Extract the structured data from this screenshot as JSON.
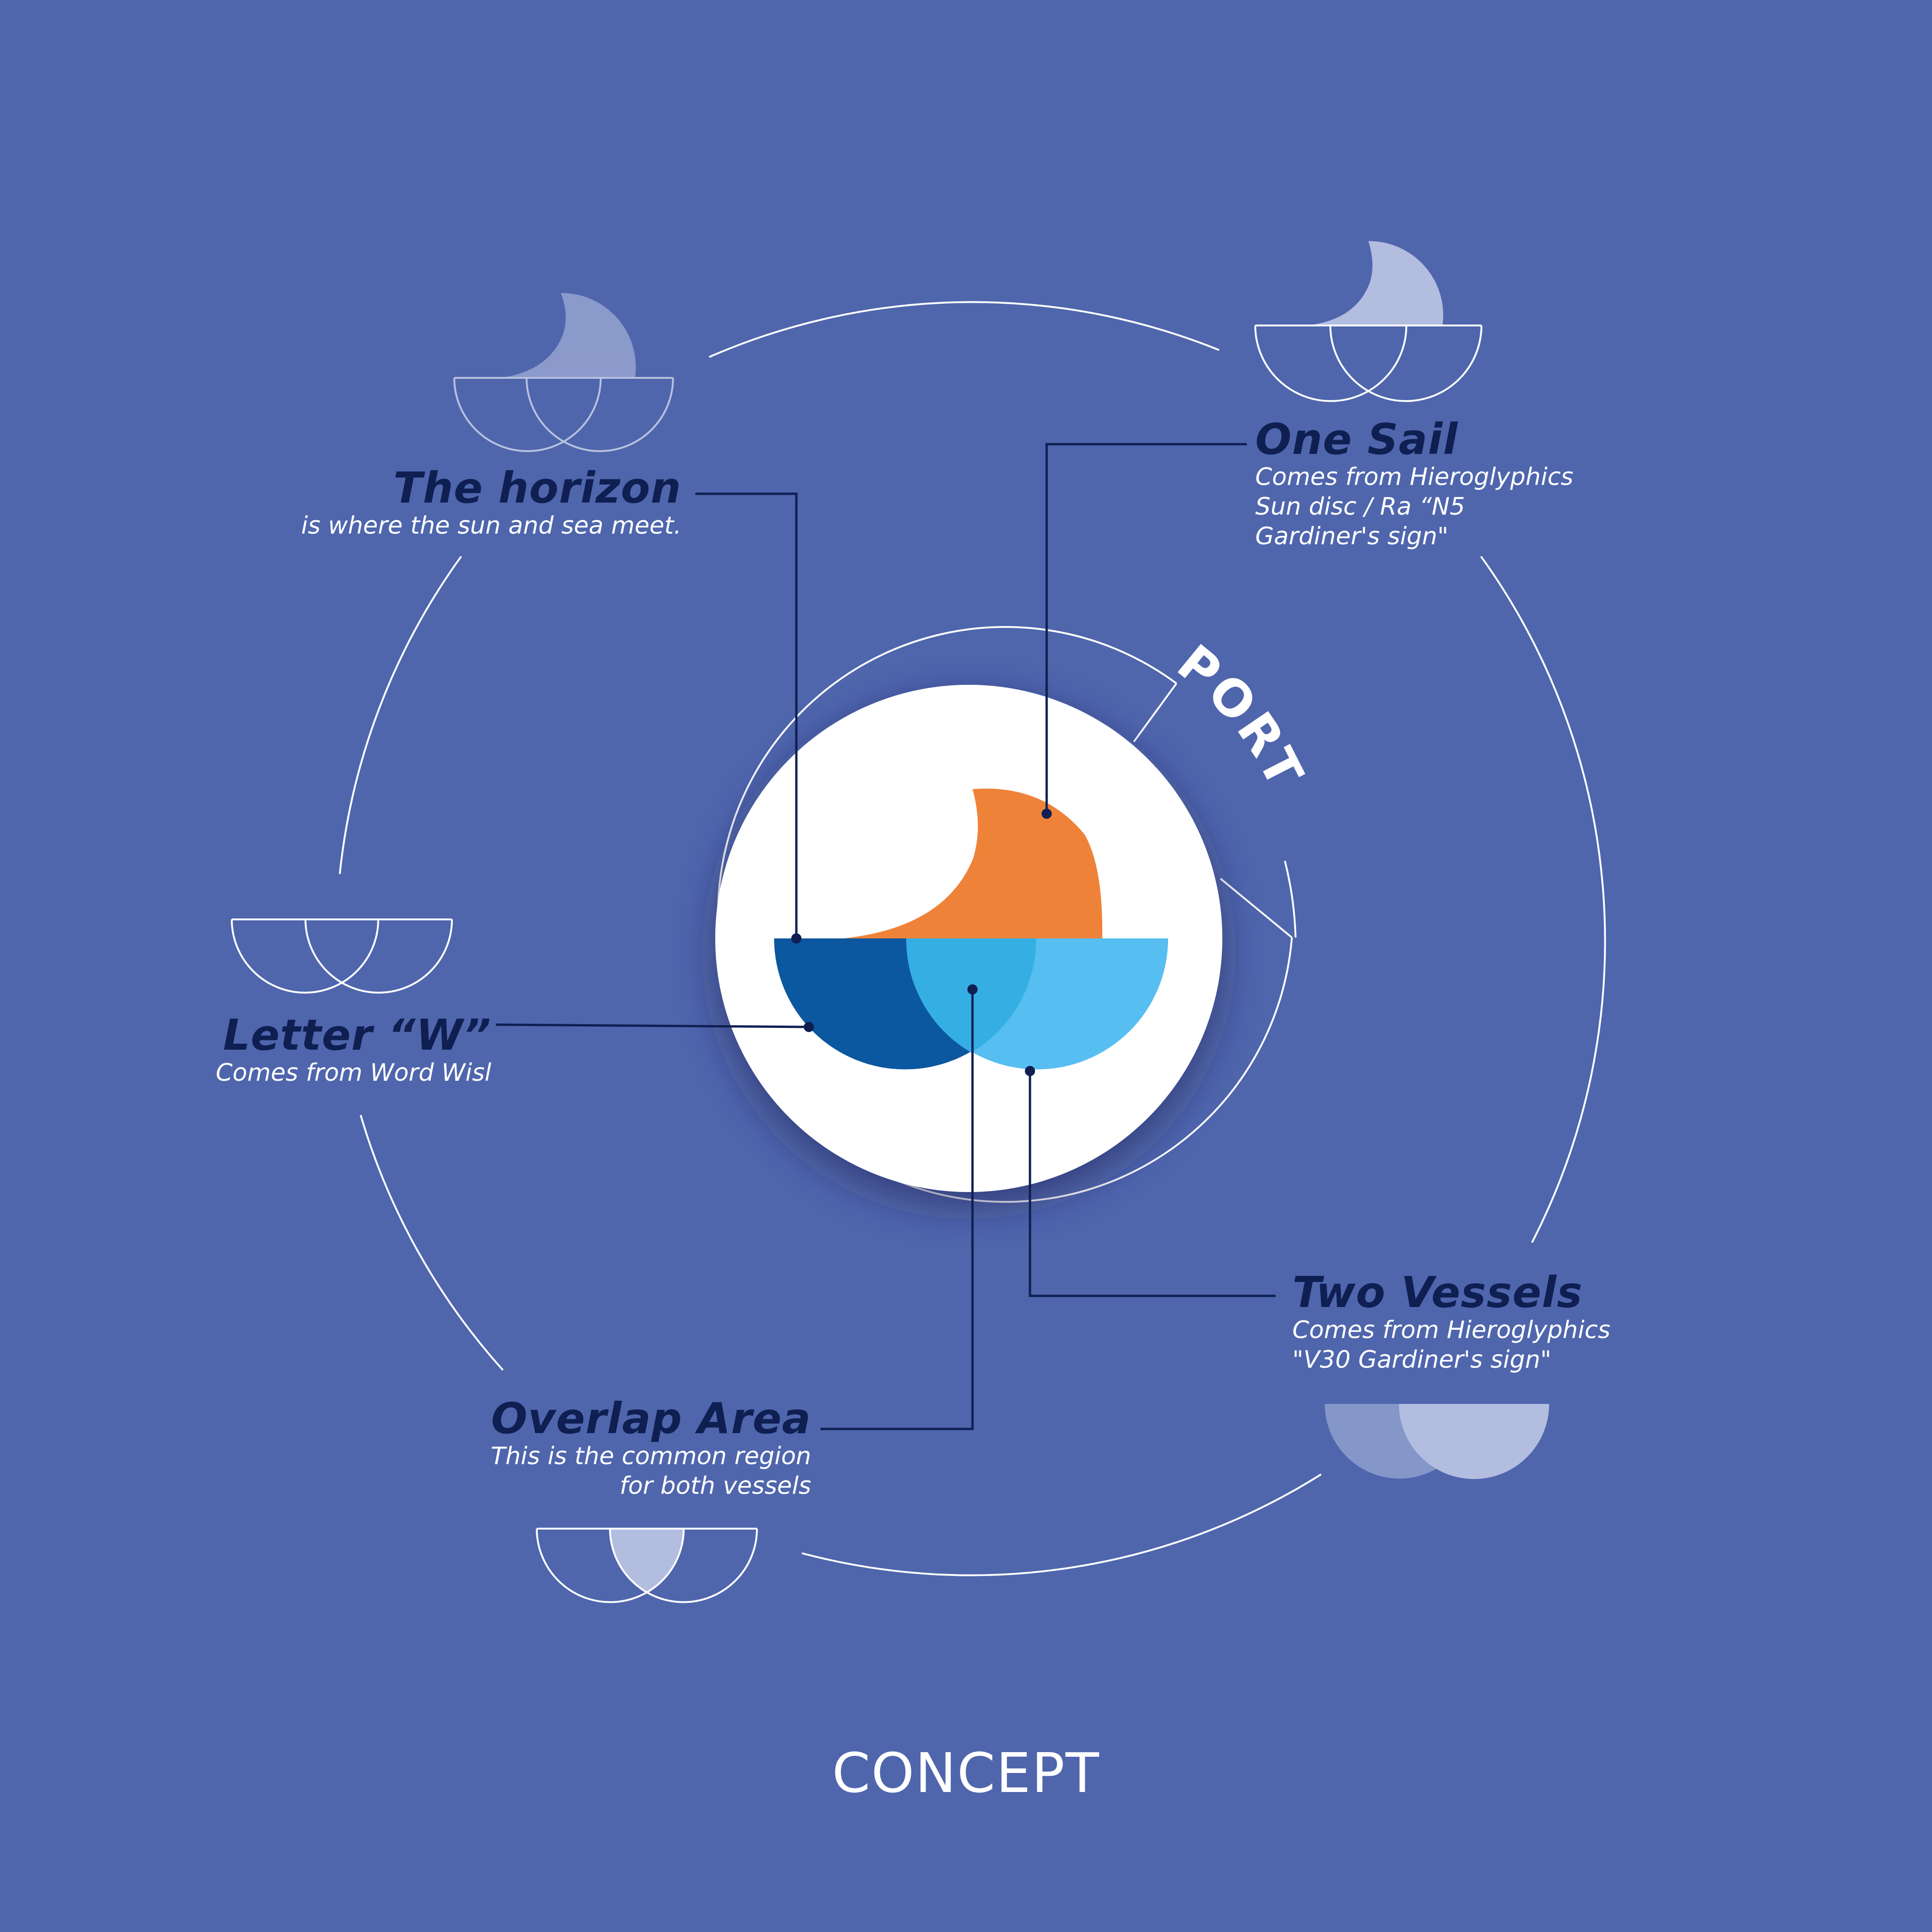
{
  "callouts": {
    "horizon": {
      "title": "The horizon",
      "lines": [
        "is where the sun and sea meet."
      ]
    },
    "one_sail": {
      "title": "One Sail",
      "lines": [
        "Comes from Hieroglyphics",
        "Sun disc / Ra “N5",
        "Gardiner's sign\""
      ]
    },
    "letter_w": {
      "title": "Letter “W”",
      "lines": [
        "Comes from Word Wisl"
      ]
    },
    "two_vessels": {
      "title": "Two Vessels",
      "lines": [
        "Comes from Hieroglyphics",
        "\"V30 Gardiner's sign\""
      ]
    },
    "overlap_area": {
      "title": "Overlap Area",
      "lines": [
        "This is the common region",
        "for both vessels"
      ]
    }
  },
  "ring_label": "PORT",
  "footer": "CONCEPT",
  "colors": {
    "background": "#4f66ad",
    "sun": "#ef8239",
    "vessel_left": "#0b57a0",
    "vessel_overlap": "#35aee4",
    "vessel_right": "#56bef0",
    "callout_title": "#0f1f52",
    "connector": "#0f1f52",
    "ring": "#ffffff"
  }
}
